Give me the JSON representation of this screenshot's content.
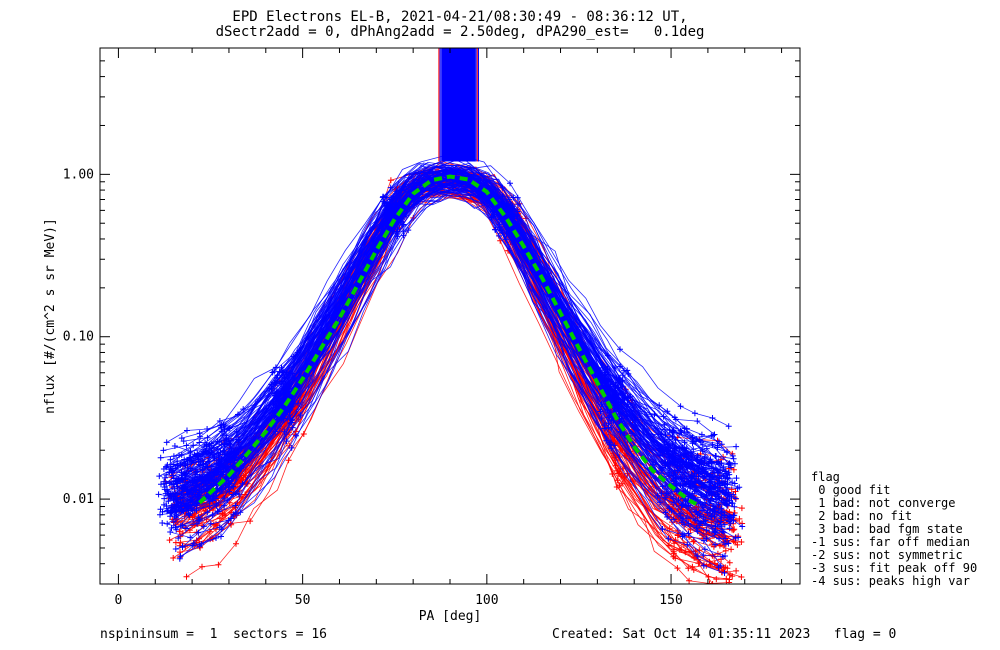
{
  "title": {
    "line1": "EPD Electrons EL-B, 2021-04-21/08:30:49 - 08:36:12 UT,",
    "line2": "dSectr2add = 0, dPhAng2add = 2.50deg, dPA290_est=   0.1deg"
  },
  "footer": {
    "left": "nspininsum =  1  sectors = 16",
    "right": "Created: Sat Oct 14 01:35:11 2023   flag = 0"
  },
  "legend": {
    "title": "flag",
    "items": [
      " 0 good fit",
      " 1 bad: not converge",
      " 2 bad: no fit",
      " 3 bad: bad fgm state",
      "-1 sus: far off median",
      "-2 sus: not symmetric",
      "-3 sus: fit peak off 90",
      "-4 sus: peaks high var"
    ]
  },
  "chart_data": {
    "type": "line",
    "title": "EPD Electrons EL-B, 2021-04-21/08:30:49 - 08:36:12 UT,",
    "subtitle": "dSectr2add = 0, dPhAng2add = 2.50deg, dPA290_est=   0.1deg",
    "xlabel": "PA [deg]",
    "ylabel": "nflux [#/(cm^2 s sr MeV)]",
    "xlim": [
      -5,
      185
    ],
    "ylim": [
      0.003,
      6
    ],
    "yscale": "log",
    "x_ticks": [
      "0",
      "50",
      "100",
      "150"
    ],
    "y_ticks": [
      "0.01",
      "0.10",
      "1.00"
    ],
    "colors": {
      "blue_series": "#0000ff",
      "red_series": "#ff0000",
      "median_fit": "#00cc00"
    },
    "median_fit": {
      "style": "dashed",
      "x": [
        22,
        25,
        30,
        35,
        40,
        45,
        50,
        55,
        60,
        65,
        70,
        75,
        80,
        85,
        90,
        95,
        100,
        105,
        110,
        115,
        120,
        125,
        130,
        135,
        140,
        145,
        150,
        155,
        158
      ],
      "y": [
        0.0095,
        0.011,
        0.014,
        0.019,
        0.026,
        0.037,
        0.055,
        0.085,
        0.13,
        0.21,
        0.34,
        0.53,
        0.76,
        0.92,
        0.97,
        0.93,
        0.78,
        0.55,
        0.36,
        0.23,
        0.14,
        0.085,
        0.052,
        0.032,
        0.021,
        0.015,
        0.012,
        0.0098,
        0.009
      ]
    },
    "blue_profile": {
      "x": [
        15,
        20,
        25,
        30,
        35,
        40,
        45,
        50,
        55,
        60,
        65,
        70,
        75,
        80,
        85,
        90,
        95,
        100,
        105,
        110,
        115,
        120,
        125,
        130,
        135,
        140,
        145,
        150,
        155,
        160,
        165
      ],
      "y": [
        0.011,
        0.012,
        0.014,
        0.017,
        0.022,
        0.03,
        0.042,
        0.062,
        0.095,
        0.15,
        0.24,
        0.38,
        0.58,
        0.8,
        0.92,
        0.96,
        0.93,
        0.8,
        0.58,
        0.38,
        0.24,
        0.15,
        0.095,
        0.062,
        0.042,
        0.03,
        0.022,
        0.017,
        0.014,
        0.012,
        0.011
      ]
    },
    "red_profile": {
      "x": [
        17,
        22,
        27,
        32,
        37,
        42,
        47,
        52,
        57,
        62,
        67,
        72,
        77,
        82,
        87,
        92,
        97,
        102,
        107,
        112,
        117,
        122,
        127,
        132,
        137,
        142,
        147,
        152,
        157,
        162,
        166
      ],
      "y": [
        0.008,
        0.0085,
        0.01,
        0.012,
        0.016,
        0.023,
        0.034,
        0.055,
        0.09,
        0.15,
        0.25,
        0.42,
        0.65,
        0.85,
        0.9,
        0.88,
        0.84,
        0.75,
        0.5,
        0.3,
        0.17,
        0.1,
        0.058,
        0.035,
        0.022,
        0.015,
        0.011,
        0.009,
        0.008,
        0.0075,
        0.007
      ]
    },
    "n_curves_blue": 120,
    "n_curves_red": 70,
    "spike_region": {
      "x_range": [
        87,
        98
      ],
      "y_range": [
        1.2,
        6
      ]
    }
  }
}
